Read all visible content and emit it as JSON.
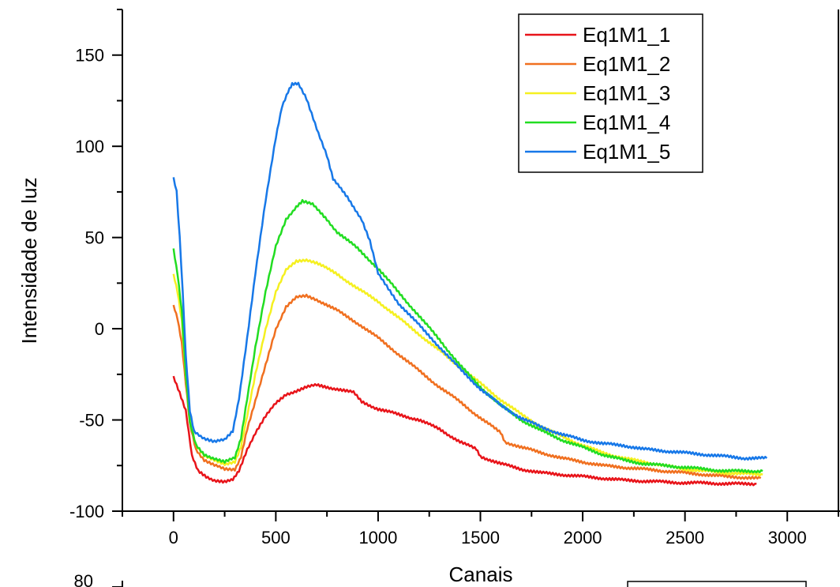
{
  "chart_data": {
    "type": "line",
    "title": "",
    "xlabel": "Canais",
    "ylabel": "Intensidade de luz",
    "xlim": [
      -250,
      3250
    ],
    "ylim": [
      -100,
      175
    ],
    "xticks": [
      0,
      500,
      1000,
      1500,
      2000,
      2500,
      3000
    ],
    "yticks": [
      -100,
      -50,
      0,
      50,
      100,
      150
    ],
    "grid": false,
    "legend_position": "top-right",
    "series": [
      {
        "name": "Eq1M1_1",
        "color": "#e8141a",
        "points": [
          [
            0,
            -26
          ],
          [
            30,
            -35
          ],
          [
            60,
            -45
          ],
          [
            90,
            -70
          ],
          [
            120,
            -78
          ],
          [
            160,
            -81
          ],
          [
            200,
            -83
          ],
          [
            250,
            -84
          ],
          [
            290,
            -83
          ],
          [
            320,
            -78
          ],
          [
            360,
            -66
          ],
          [
            400,
            -57
          ],
          [
            450,
            -48
          ],
          [
            500,
            -41
          ],
          [
            550,
            -36
          ],
          [
            600,
            -34
          ],
          [
            650,
            -32
          ],
          [
            700,
            -31
          ],
          [
            800,
            -33
          ],
          [
            880,
            -35
          ],
          [
            920,
            -40
          ],
          [
            1000,
            -44
          ],
          [
            1100,
            -47
          ],
          [
            1200,
            -50
          ],
          [
            1300,
            -55
          ],
          [
            1400,
            -62
          ],
          [
            1480,
            -66
          ],
          [
            1500,
            -70
          ],
          [
            1600,
            -74
          ],
          [
            1700,
            -77
          ],
          [
            1800,
            -79
          ],
          [
            1900,
            -80
          ],
          [
            2000,
            -81
          ],
          [
            2100,
            -82
          ],
          [
            2200,
            -83
          ],
          [
            2300,
            -83.5
          ],
          [
            2400,
            -84
          ],
          [
            2500,
            -84.5
          ],
          [
            2600,
            -84.5
          ],
          [
            2700,
            -85
          ],
          [
            2850,
            -85
          ]
        ]
      },
      {
        "name": "Eq1M1_2",
        "color": "#f07020",
        "points": [
          [
            0,
            13
          ],
          [
            20,
            5
          ],
          [
            40,
            -8
          ],
          [
            60,
            -30
          ],
          [
            80,
            -52
          ],
          [
            110,
            -66
          ],
          [
            150,
            -72
          ],
          [
            200,
            -75
          ],
          [
            250,
            -77
          ],
          [
            300,
            -77
          ],
          [
            330,
            -70
          ],
          [
            360,
            -55
          ],
          [
            400,
            -40
          ],
          [
            450,
            -20
          ],
          [
            500,
            0
          ],
          [
            550,
            12
          ],
          [
            600,
            17
          ],
          [
            650,
            18
          ],
          [
            700,
            16
          ],
          [
            800,
            10
          ],
          [
            900,
            3
          ],
          [
            1000,
            -5
          ],
          [
            1100,
            -14
          ],
          [
            1200,
            -23
          ],
          [
            1300,
            -32
          ],
          [
            1400,
            -40
          ],
          [
            1500,
            -49
          ],
          [
            1600,
            -57
          ],
          [
            1620,
            -62
          ],
          [
            1700,
            -65
          ],
          [
            1800,
            -68
          ],
          [
            1900,
            -71
          ],
          [
            2000,
            -73
          ],
          [
            2100,
            -75
          ],
          [
            2200,
            -76
          ],
          [
            2300,
            -77
          ],
          [
            2400,
            -78
          ],
          [
            2500,
            -79
          ],
          [
            2600,
            -80
          ],
          [
            2700,
            -81
          ],
          [
            2870,
            -82
          ]
        ]
      },
      {
        "name": "Eq1M1_3",
        "color": "#f5f020",
        "points": [
          [
            0,
            30
          ],
          [
            20,
            20
          ],
          [
            40,
            5
          ],
          [
            60,
            -25
          ],
          [
            80,
            -50
          ],
          [
            110,
            -64
          ],
          [
            150,
            -70
          ],
          [
            200,
            -72
          ],
          [
            250,
            -74
          ],
          [
            300,
            -73
          ],
          [
            330,
            -65
          ],
          [
            360,
            -48
          ],
          [
            400,
            -25
          ],
          [
            450,
            0
          ],
          [
            500,
            20
          ],
          [
            550,
            32
          ],
          [
            600,
            37
          ],
          [
            650,
            38
          ],
          [
            700,
            36
          ],
          [
            800,
            30
          ],
          [
            900,
            22
          ],
          [
            1000,
            15
          ],
          [
            1100,
            6
          ],
          [
            1200,
            -3
          ],
          [
            1300,
            -12
          ],
          [
            1400,
            -21
          ],
          [
            1500,
            -30
          ],
          [
            1600,
            -39
          ],
          [
            1700,
            -47
          ],
          [
            1800,
            -54
          ],
          [
            1900,
            -59
          ],
          [
            2000,
            -64
          ],
          [
            2100,
            -68
          ],
          [
            2200,
            -71
          ],
          [
            2300,
            -73
          ],
          [
            2400,
            -75
          ],
          [
            2500,
            -77
          ],
          [
            2600,
            -78
          ],
          [
            2700,
            -79
          ],
          [
            2880,
            -80
          ]
        ]
      },
      {
        "name": "Eq1M1_4",
        "color": "#22dd22",
        "points": [
          [
            0,
            44
          ],
          [
            20,
            30
          ],
          [
            40,
            10
          ],
          [
            60,
            -25
          ],
          [
            80,
            -52
          ],
          [
            110,
            -64
          ],
          [
            150,
            -69
          ],
          [
            200,
            -71
          ],
          [
            250,
            -73
          ],
          [
            300,
            -71
          ],
          [
            330,
            -60
          ],
          [
            360,
            -38
          ],
          [
            400,
            -10
          ],
          [
            450,
            20
          ],
          [
            500,
            45
          ],
          [
            550,
            60
          ],
          [
            600,
            67
          ],
          [
            630,
            70
          ],
          [
            680,
            68
          ],
          [
            750,
            60
          ],
          [
            800,
            53
          ],
          [
            900,
            44
          ],
          [
            1000,
            33
          ],
          [
            1100,
            20
          ],
          [
            1200,
            7
          ],
          [
            1300,
            -6
          ],
          [
            1400,
            -20
          ],
          [
            1500,
            -32
          ],
          [
            1600,
            -42
          ],
          [
            1700,
            -50
          ],
          [
            1800,
            -56
          ],
          [
            1900,
            -61
          ],
          [
            2000,
            -65
          ],
          [
            2100,
            -69
          ],
          [
            2200,
            -72
          ],
          [
            2300,
            -74
          ],
          [
            2400,
            -75
          ],
          [
            2500,
            -76
          ],
          [
            2600,
            -77
          ],
          [
            2700,
            -78
          ],
          [
            2880,
            -78
          ]
        ]
      },
      {
        "name": "Eq1M1_5",
        "color": "#1778e8",
        "points": [
          [
            0,
            83
          ],
          [
            15,
            75
          ],
          [
            30,
            50
          ],
          [
            45,
            20
          ],
          [
            60,
            -15
          ],
          [
            80,
            -45
          ],
          [
            100,
            -56
          ],
          [
            150,
            -60
          ],
          [
            200,
            -62
          ],
          [
            250,
            -61
          ],
          [
            290,
            -56
          ],
          [
            320,
            -38
          ],
          [
            360,
            -5
          ],
          [
            400,
            30
          ],
          [
            450,
            70
          ],
          [
            500,
            105
          ],
          [
            530,
            122
          ],
          [
            560,
            130
          ],
          [
            580,
            134
          ],
          [
            610,
            134
          ],
          [
            650,
            126
          ],
          [
            700,
            110
          ],
          [
            750,
            95
          ],
          [
            780,
            82
          ],
          [
            850,
            72
          ],
          [
            920,
            60
          ],
          [
            960,
            48
          ],
          [
            1000,
            30
          ],
          [
            1050,
            22
          ],
          [
            1100,
            14
          ],
          [
            1200,
            2
          ],
          [
            1300,
            -10
          ],
          [
            1400,
            -22
          ],
          [
            1500,
            -33
          ],
          [
            1600,
            -42
          ],
          [
            1700,
            -49
          ],
          [
            1800,
            -54
          ],
          [
            1900,
            -58
          ],
          [
            2000,
            -61
          ],
          [
            2100,
            -63
          ],
          [
            2200,
            -64
          ],
          [
            2300,
            -66
          ],
          [
            2400,
            -67
          ],
          [
            2500,
            -68
          ],
          [
            2600,
            -69
          ],
          [
            2700,
            -70
          ],
          [
            2800,
            -71
          ],
          [
            2900,
            -71
          ]
        ]
      }
    ]
  },
  "second_chart": {
    "yticks_visible": [
      "80"
    ]
  }
}
